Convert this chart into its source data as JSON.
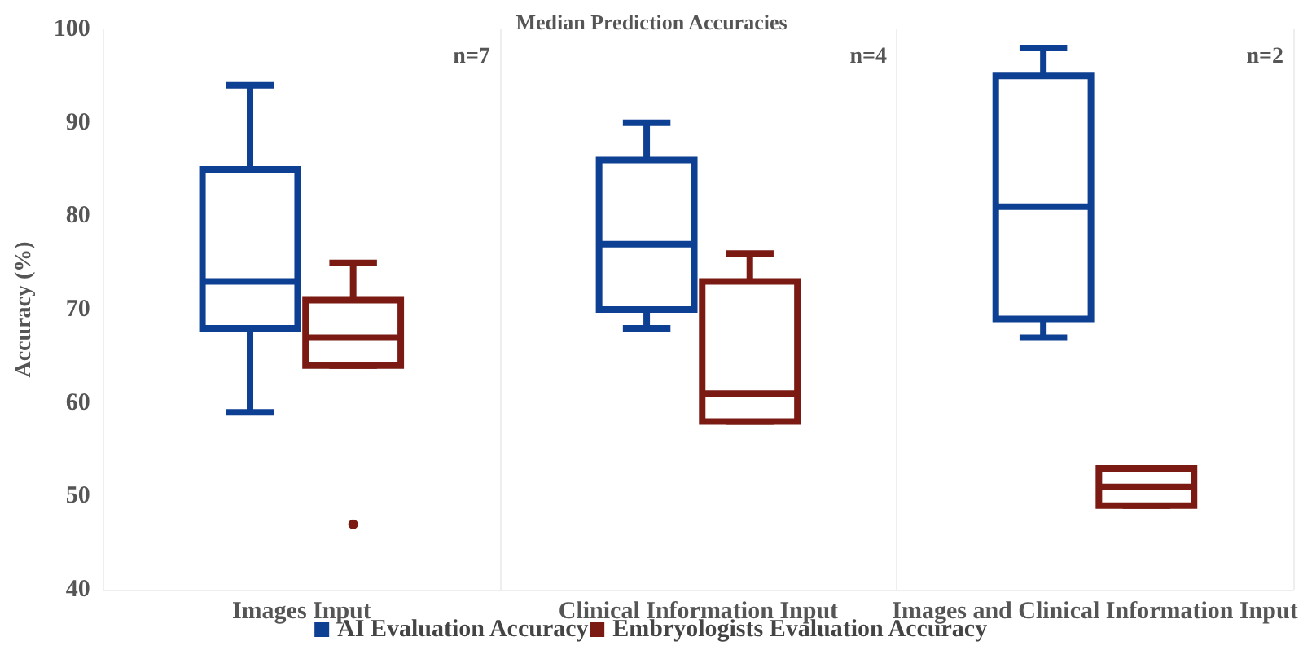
{
  "chart_data": {
    "type": "box",
    "title": "Median Prediction Accuracies",
    "ylabel": "Accuracy (%)",
    "categories": [
      "Images Input",
      "Clinical Information Input",
      "Images and Clinical Information Input"
    ],
    "series": [
      {
        "name": "AI Evaluation Accuracy",
        "color": "#0d3f92",
        "boxes": [
          {
            "low": 59,
            "q1": 68,
            "median": 73,
            "q3": 85,
            "high": 94
          },
          {
            "low": 68,
            "q1": 70,
            "median": 77,
            "q3": 86,
            "high": 90
          },
          {
            "low": 67,
            "q1": 69,
            "median": 81,
            "q3": 95,
            "high": 98
          }
        ]
      },
      {
        "name": "Embryologists Evaluation Accuracy",
        "color": "#7a1a12",
        "boxes": [
          {
            "low": 64,
            "q1": 64,
            "median": 67,
            "q3": 71,
            "high": 75,
            "outliers": [
              47
            ]
          },
          {
            "low": 58,
            "q1": 58,
            "median": 61,
            "q3": 73,
            "high": 76
          },
          {
            "low": 49,
            "q1": 49,
            "median": 51,
            "q3": 53,
            "high": 53
          }
        ]
      }
    ],
    "annotations": [
      "n=7",
      "n=4",
      "n=2"
    ],
    "ylim": [
      40,
      100
    ],
    "yticks": [
      40,
      50,
      60,
      70,
      80,
      90,
      100
    ],
    "grid": "x",
    "legend": "bottom"
  }
}
